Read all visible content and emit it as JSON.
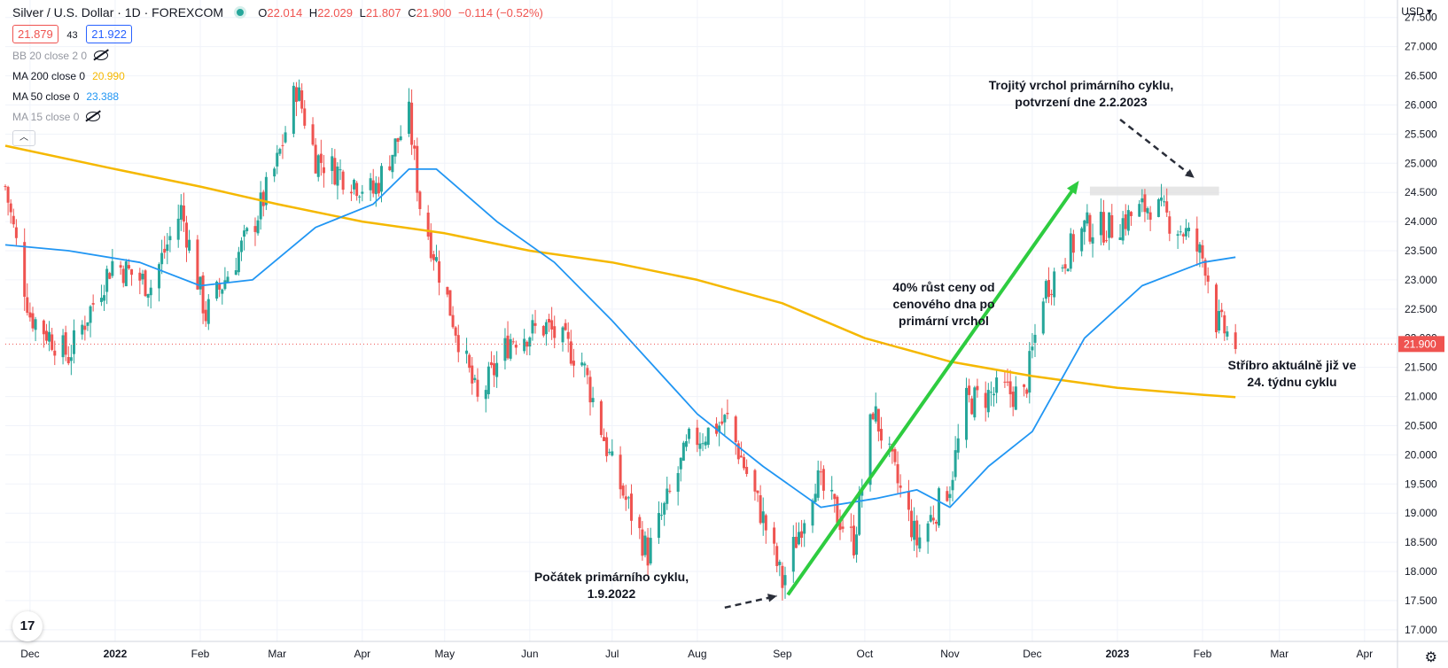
{
  "header": {
    "title": "Silver / U.S. Dollar · 1D · FOREXCOM",
    "ohlc": [
      {
        "k": "O",
        "v": "22.014"
      },
      {
        "k": "H",
        "v": "22.029"
      },
      {
        "k": "L",
        "v": "21.807"
      },
      {
        "k": "C",
        "v": "21.900"
      }
    ],
    "change": "−0.114 (−0.52%)",
    "bid": "21.879",
    "spread": "43",
    "ask": "21.922"
  },
  "indicators": [
    {
      "label": "BB 20 close 2 0",
      "value": "",
      "hidden": true,
      "color": "#9598a1"
    },
    {
      "label": "MA 200 close 0",
      "value": "20.990",
      "hidden": false,
      "color": "#f5b800"
    },
    {
      "label": "MA 50 close 0",
      "value": "23.388",
      "hidden": false,
      "color": "#2196f3"
    },
    {
      "label": "MA 15 close 0",
      "value": "",
      "hidden": true,
      "color": "#9598a1"
    }
  ],
  "currency": "USD",
  "last_price_label": "21.900",
  "annotations": {
    "triple_top": "Trojitý vrchol primárního cyklu,\npotvrzení dne 2.2.2023",
    "rise": "40% růst ceny od\ncenového dna po\nprimární vrchol",
    "cycle_start": "Počátek primárního cyklu,\n1.9.2022",
    "current": "Stříbro aktuálně již ve\n24. týdnu cyklu"
  },
  "logo_text": "17",
  "colors": {
    "up": "#26a69a",
    "down": "#ef5350",
    "ma200": "#f5b800",
    "ma50": "#2196f3",
    "arrow": "#2ecc40",
    "grid": "#f0f3fa"
  },
  "chart_data": {
    "type": "candlestick",
    "ylim": [
      16.8,
      27.8
    ],
    "y_ticks": [
      17.0,
      17.5,
      18.0,
      18.5,
      19.0,
      19.5,
      20.0,
      20.5,
      21.0,
      21.5,
      22.0,
      22.5,
      23.0,
      23.5,
      24.0,
      24.5,
      25.0,
      25.5,
      26.0,
      26.5,
      27.0,
      27.5
    ],
    "x_labels": [
      "Dec",
      "2022",
      "Feb",
      "Mar",
      "Apr",
      "May",
      "Jun",
      "Jul",
      "Aug",
      "Sep",
      "Oct",
      "Nov",
      "Dec",
      "2023",
      "Feb",
      "Mar",
      "Apr"
    ],
    "x_start": "2021-11-22",
    "x_end": "2023-04-13",
    "last_price": 21.9,
    "close_path": [
      [
        "2021-11-22",
        24.6
      ],
      [
        "2021-12-01",
        22.4
      ],
      [
        "2021-12-15",
        21.7
      ],
      [
        "2021-12-31",
        23.3
      ],
      [
        "2022-01-14",
        22.9
      ],
      [
        "2022-01-25",
        24.2
      ],
      [
        "2022-02-03",
        22.4
      ],
      [
        "2022-02-20",
        23.9
      ],
      [
        "2022-03-01",
        25.0
      ],
      [
        "2022-03-08",
        26.3
      ],
      [
        "2022-03-15",
        25.1
      ],
      [
        "2022-03-29",
        24.7
      ],
      [
        "2022-04-05",
        24.5
      ],
      [
        "2022-04-18",
        25.8
      ],
      [
        "2022-04-22",
        24.3
      ],
      [
        "2022-05-03",
        22.5
      ],
      [
        "2022-05-13",
        20.9
      ],
      [
        "2022-05-25",
        22.0
      ],
      [
        "2022-06-07",
        22.2
      ],
      [
        "2022-06-20",
        21.6
      ],
      [
        "2022-07-01",
        19.8
      ],
      [
        "2022-07-14",
        18.3
      ],
      [
        "2022-07-29",
        20.2
      ],
      [
        "2022-08-12",
        20.6
      ],
      [
        "2022-08-25",
        18.9
      ],
      [
        "2022-09-01",
        17.8
      ],
      [
        "2022-09-13",
        19.6
      ],
      [
        "2022-09-27",
        18.5
      ],
      [
        "2022-10-04",
        20.8
      ],
      [
        "2022-10-20",
        18.5
      ],
      [
        "2022-11-01",
        19.5
      ],
      [
        "2022-11-07",
        20.9
      ],
      [
        "2022-11-20",
        21.1
      ],
      [
        "2022-11-28",
        21.0
      ],
      [
        "2022-12-05",
        22.8
      ],
      [
        "2022-12-20",
        23.9
      ],
      [
        "2022-12-30",
        23.9
      ],
      [
        "2023-01-13",
        24.3
      ],
      [
        "2023-01-26",
        23.8
      ],
      [
        "2023-02-02",
        23.3
      ],
      [
        "2023-02-06",
        22.3
      ],
      [
        "2023-02-13",
        21.9
      ]
    ],
    "ma200_path": [
      [
        "2021-11-22",
        25.3
      ],
      [
        "2022-01-01",
        24.9
      ],
      [
        "2022-02-01",
        24.6
      ],
      [
        "2022-03-01",
        24.3
      ],
      [
        "2022-04-01",
        24.0
      ],
      [
        "2022-05-01",
        23.8
      ],
      [
        "2022-06-01",
        23.5
      ],
      [
        "2022-07-01",
        23.3
      ],
      [
        "2022-08-01",
        23.0
      ],
      [
        "2022-09-01",
        22.6
      ],
      [
        "2022-10-01",
        22.0
      ],
      [
        "2022-11-01",
        21.6
      ],
      [
        "2022-12-01",
        21.35
      ],
      [
        "2023-01-01",
        21.15
      ],
      [
        "2023-02-01",
        21.03
      ],
      [
        "2023-02-13",
        20.99
      ]
    ],
    "ma50_path": [
      [
        "2021-11-22",
        23.6
      ],
      [
        "2021-12-15",
        23.5
      ],
      [
        "2022-01-10",
        23.3
      ],
      [
        "2022-02-01",
        22.9
      ],
      [
        "2022-02-20",
        23.0
      ],
      [
        "2022-03-15",
        23.9
      ],
      [
        "2022-04-05",
        24.3
      ],
      [
        "2022-04-18",
        24.9
      ],
      [
        "2022-04-28",
        24.9
      ],
      [
        "2022-05-20",
        24.0
      ],
      [
        "2022-06-10",
        23.3
      ],
      [
        "2022-07-01",
        22.3
      ],
      [
        "2022-08-01",
        20.7
      ],
      [
        "2022-08-25",
        19.8
      ],
      [
        "2022-09-15",
        19.1
      ],
      [
        "2022-10-05",
        19.25
      ],
      [
        "2022-10-20",
        19.4
      ],
      [
        "2022-11-01",
        19.1
      ],
      [
        "2022-11-15",
        19.8
      ],
      [
        "2022-12-01",
        20.4
      ],
      [
        "2022-12-20",
        22.0
      ],
      [
        "2023-01-10",
        22.9
      ],
      [
        "2023-02-01",
        23.3
      ],
      [
        "2023-02-13",
        23.39
      ]
    ],
    "arrow": {
      "from": [
        "2022-09-03",
        17.6
      ],
      "to": [
        "2022-12-18",
        24.7
      ]
    },
    "resistance_band": {
      "from": "2022-12-22",
      "to": "2023-02-07",
      "low": 24.45,
      "high": 24.6
    },
    "dashed_arrows": [
      {
        "from": [
          "2023-01-02",
          25.75
        ],
        "to": [
          "2023-01-29",
          24.75
        ]
      },
      {
        "from": [
          "2022-08-11",
          17.38
        ],
        "to": [
          "2022-08-30",
          17.58
        ]
      }
    ]
  }
}
